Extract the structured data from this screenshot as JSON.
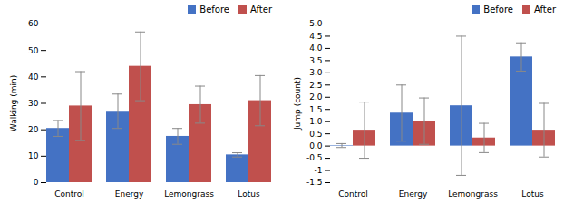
{
  "chart_data": [
    {
      "type": "bar",
      "categories": [
        "Control",
        "Energy",
        "Lemongrass",
        "Lotus"
      ],
      "series": [
        {
          "name": "Before",
          "color": "#4472C4",
          "values": [
            20.5,
            27.0,
            17.5,
            10.5
          ],
          "errors": [
            3.0,
            6.5,
            3.0,
            0.8
          ]
        },
        {
          "name": "After",
          "color": "#C0504D",
          "values": [
            29.0,
            44.0,
            29.5,
            31.0
          ],
          "errors": [
            13.0,
            13.0,
            7.0,
            9.5
          ]
        }
      ],
      "ylabel": "Walking (min)",
      "ylim": [
        0,
        60
      ],
      "yticks": [
        0,
        10,
        20,
        30,
        40,
        50,
        60
      ],
      "legend": "upper right",
      "grid": false
    },
    {
      "type": "bar",
      "categories": [
        "Control",
        "Energy",
        "Lemongrass",
        "Lotus"
      ],
      "series": [
        {
          "name": "Before",
          "color": "#4472C4",
          "values": [
            0.02,
            1.35,
            1.65,
            3.65
          ],
          "errors": [
            0.08,
            1.15,
            2.85,
            0.58
          ]
        },
        {
          "name": "After",
          "color": "#C0504D",
          "values": [
            0.65,
            1.02,
            0.33,
            0.65
          ],
          "errors": [
            1.15,
            0.95,
            0.6,
            1.1
          ]
        }
      ],
      "ylabel": "Jump (count)",
      "ylim": [
        -1.5,
        5.0
      ],
      "yticks": [
        -1.5,
        -1.0,
        -0.5,
        {
          "value": 0,
          "label": "0.0"
        },
        0.5,
        {
          "value": 1,
          "label": "1.0"
        },
        1.5,
        {
          "value": 2,
          "label": "2.0"
        },
        2.5,
        {
          "value": 3,
          "label": "3.0"
        },
        3.5,
        {
          "value": 4,
          "label": "4.0"
        },
        4.5,
        {
          "value": 5,
          "label": "5.0"
        }
      ],
      "legend": "upper right",
      "grid": false
    }
  ]
}
